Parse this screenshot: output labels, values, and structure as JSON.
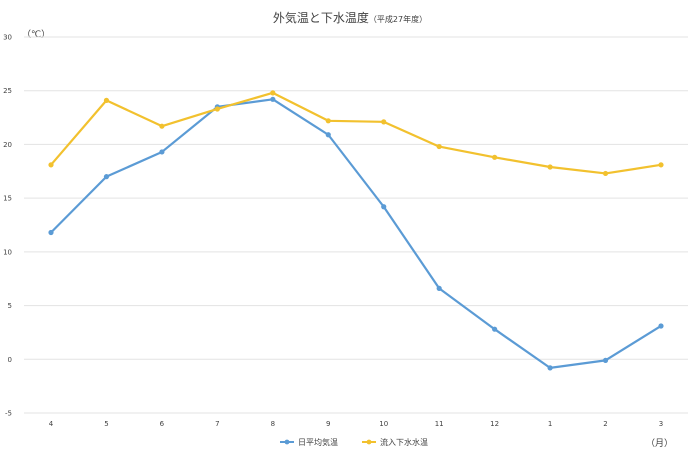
{
  "chart_data": {
    "type": "line",
    "title": "外気温と下水温度",
    "subtitle": "（平成27年度）",
    "ylabel": "（℃）",
    "xlabel": "（月）",
    "categories": [
      "4",
      "5",
      "6",
      "7",
      "8",
      "9",
      "10",
      "11",
      "12",
      "1",
      "2",
      "3"
    ],
    "ylim": [
      -5,
      30
    ],
    "yticks": [
      "-5",
      "0",
      "5",
      "10",
      "15",
      "20",
      "25",
      "30"
    ],
    "grid": true,
    "legend_position": "bottom",
    "series": [
      {
        "name": "日平均気温",
        "color": "#5B9BD5",
        "values": [
          11.8,
          17.0,
          19.3,
          23.5,
          24.2,
          20.9,
          14.2,
          6.6,
          2.8,
          -0.8,
          -0.1,
          3.1
        ]
      },
      {
        "name": "流入下水水温",
        "color": "#F2C12E",
        "values": [
          18.1,
          24.1,
          21.7,
          23.3,
          24.8,
          22.2,
          22.1,
          19.8,
          18.8,
          17.9,
          17.3,
          18.1
        ]
      }
    ]
  }
}
